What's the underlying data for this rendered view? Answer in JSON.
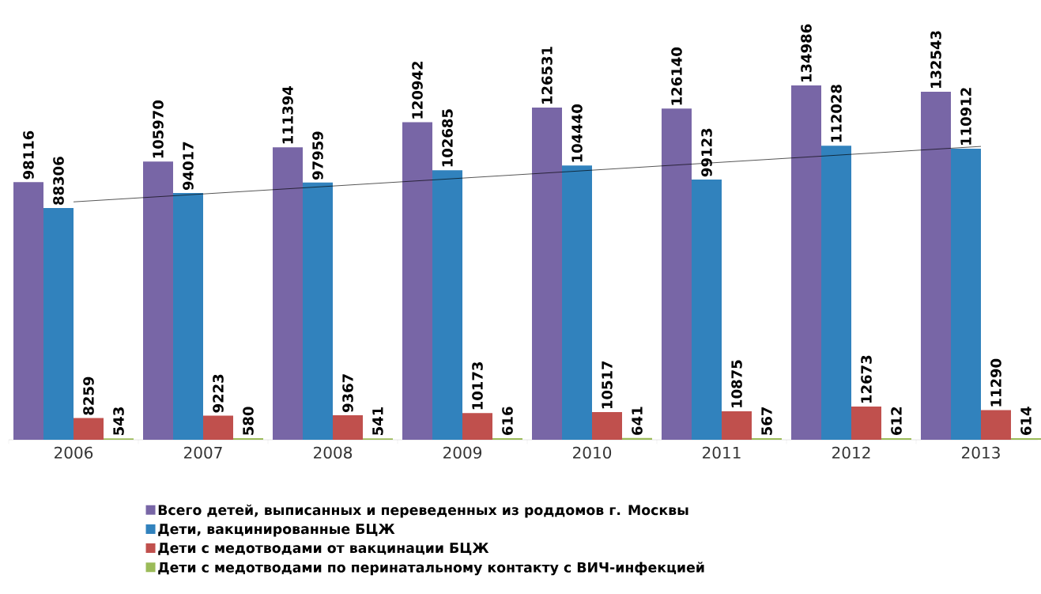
{
  "chart_data": {
    "type": "bar",
    "categories": [
      "2006",
      "2007",
      "2008",
      "2009",
      "2010",
      "2011",
      "2012",
      "2013"
    ],
    "series": [
      {
        "name": "Всего детей, выписанных и переведенных из роддомов г. Москвы",
        "color": "#7866a6",
        "values": [
          98116,
          105970,
          111394,
          120942,
          126531,
          126140,
          134986,
          132543
        ],
        "value_labels": [
          "98116",
          "105970",
          "111394",
          "120942",
          "126531",
          "126140",
          "134986",
          "132543"
        ]
      },
      {
        "name": "Дети, вакцинированные БЦЖ",
        "color": "#3182bd",
        "values": [
          88306,
          94017,
          97959,
          102685,
          104440,
          99123,
          112028,
          110912
        ],
        "value_labels": [
          "88306",
          "94017",
          "97959",
          "102685",
          "104440",
          "99123",
          "112028",
          "110912"
        ]
      },
      {
        "name": "Дети с медотводами от вакцинации БЦЖ",
        "color": "#c0504d",
        "values": [
          8259,
          9223,
          9367,
          10173,
          10517,
          10875,
          12673,
          11290
        ],
        "value_labels": [
          "8259",
          "9223",
          "9367",
          "10173",
          "10517",
          "10875",
          "12673",
          "11290"
        ]
      },
      {
        "name": "Дети с медотводами по перинатальному контакту с ВИЧ-инфекцией",
        "color": "#9bbb59",
        "values": [
          543,
          580,
          541,
          616,
          641,
          567,
          612,
          614
        ],
        "value_labels": [
          "543",
          "580",
          "541",
          "616",
          "641",
          "567",
          "612",
          "614"
        ]
      },
      {
        "type": "line",
        "color": "#000000",
        "values": [
          90620,
          93638,
          96657,
          99675,
          102693,
          105711,
          108730,
          111748
        ]
      }
    ],
    "legend": "bottom"
  }
}
